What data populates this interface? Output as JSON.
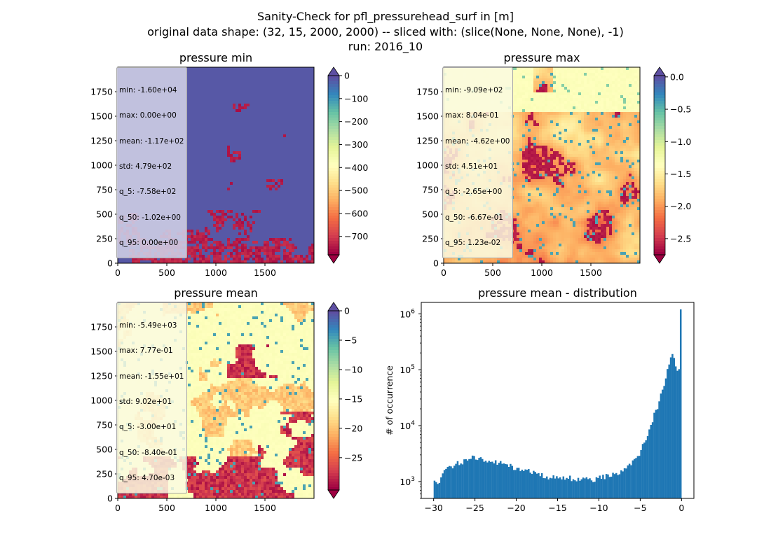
{
  "suptitle": {
    "line1": "Sanity-Check for pfl_pressurehead_surf in [m]",
    "line2": "original data shape: (32, 15, 2000, 2000) -- sliced with: (slice(None, None, None), -1)",
    "line3": "run: 2016_10"
  },
  "colors": {
    "spectral": [
      "#9e0142",
      "#d53e4f",
      "#f46d43",
      "#fdae61",
      "#fee08b",
      "#ffffbf",
      "#e6f598",
      "#abdda4",
      "#66c2a5",
      "#3288bd",
      "#5e4fa2"
    ],
    "hist_bar": "#1f77b4"
  },
  "chart_data": [
    {
      "type": "heatmap",
      "title": "pressure min",
      "xlim": [
        0,
        2000
      ],
      "ylim": [
        0,
        2000
      ],
      "x_ticks": [
        "0",
        "500",
        "1000",
        "1500"
      ],
      "y_ticks": [
        "0",
        "250",
        "500",
        "750",
        "1000",
        "1250",
        "1500",
        "1750"
      ],
      "colorbar": {
        "range": [
          -780,
          0
        ],
        "extend": "both",
        "ticks": [
          "0",
          "−100",
          "−200",
          "−300",
          "−400",
          "−500",
          "−600",
          "−700"
        ],
        "tick_values": [
          0,
          -100,
          -200,
          -300,
          -400,
          -500,
          -600,
          -700
        ]
      },
      "colormap": "Spectral",
      "stats": [
        "min: -1.60e+04",
        "max: 0.00e+00",
        "mean: -1.17e+02",
        "std: 4.79e+02",
        "q_5: -7.58e+02",
        "q_50: -1.02e+00",
        "q_95: 0.00e+00"
      ]
    },
    {
      "type": "heatmap",
      "title": "pressure max",
      "xlim": [
        0,
        2000
      ],
      "ylim": [
        0,
        2000
      ],
      "x_ticks": [
        "0",
        "500",
        "1000",
        "1500"
      ],
      "y_ticks": [
        "0",
        "250",
        "500",
        "750",
        "1000",
        "1250",
        "1500",
        "1750"
      ],
      "colorbar": {
        "range": [
          -2.75,
          0.02
        ],
        "extend": "both",
        "ticks": [
          "0.0",
          "−0.5",
          "−1.0",
          "−1.5",
          "−2.0",
          "−2.5"
        ],
        "tick_values": [
          0,
          -0.5,
          -1.0,
          -1.5,
          -2.0,
          -2.5
        ]
      },
      "colormap": "Spectral",
      "stats": [
        "min: -9.09e+02",
        "max: 8.04e-01",
        "mean: -4.62e+00",
        "std: 4.51e+01",
        "q_5: -2.65e+00",
        "q_50: -6.67e-01",
        "q_95: 1.23e-02"
      ]
    },
    {
      "type": "heatmap",
      "title": "pressure mean",
      "xlim": [
        0,
        2000
      ],
      "ylim": [
        0,
        2000
      ],
      "x_ticks": [
        "0",
        "500",
        "1000",
        "1500"
      ],
      "y_ticks": [
        "0",
        "250",
        "500",
        "750",
        "1000",
        "1250",
        "1500",
        "1750"
      ],
      "colorbar": {
        "range": [
          -30.5,
          0
        ],
        "extend": "both",
        "ticks": [
          "0",
          "−5",
          "−10",
          "−15",
          "−20",
          "−25"
        ],
        "tick_values": [
          0,
          -5,
          -10,
          -15,
          -20,
          -25
        ]
      },
      "colormap": "Spectral",
      "stats": [
        "min: -5.49e+03",
        "max: 7.77e-01",
        "mean: -1.55e+01",
        "std: 9.02e+01",
        "q_5: -3.00e+01",
        "q_50: -8.40e-01",
        "q_95: 4.70e-03"
      ]
    },
    {
      "type": "bar",
      "title": "pressure mean - distribution",
      "ylabel": "# of occurrence",
      "yscale": "log",
      "xlim": [
        -31.5,
        1.5
      ],
      "x_ticks": [
        "−30",
        "−25",
        "−20",
        "−15",
        "−10",
        "−5",
        "0"
      ],
      "x_tick_values": [
        -30,
        -25,
        -20,
        -15,
        -10,
        -5,
        0
      ],
      "y_ticks": [
        "10",
        "10",
        "10",
        "10"
      ],
      "y_tick_exponents": [
        "3",
        "4",
        "5",
        "6"
      ],
      "y_tick_values": [
        1000,
        10000,
        100000,
        1000000
      ],
      "ylim": [
        500,
        1600000
      ],
      "bin_range": [
        -30,
        0
      ],
      "bins": 150,
      "envelope": [
        {
          "x": -30.0,
          "y": 1300
        },
        {
          "x": -29.6,
          "y": 850
        },
        {
          "x": -29.2,
          "y": 1150
        },
        {
          "x": -28.5,
          "y": 1650
        },
        {
          "x": -27.5,
          "y": 2000
        },
        {
          "x": -26.0,
          "y": 2350
        },
        {
          "x": -25.0,
          "y": 2800
        },
        {
          "x": -24.0,
          "y": 2350
        },
        {
          "x": -22.5,
          "y": 2250
        },
        {
          "x": -21.0,
          "y": 1900
        },
        {
          "x": -19.5,
          "y": 1650
        },
        {
          "x": -18.0,
          "y": 1500
        },
        {
          "x": -16.5,
          "y": 1250
        },
        {
          "x": -15.0,
          "y": 1180
        },
        {
          "x": -13.5,
          "y": 1150
        },
        {
          "x": -12.0,
          "y": 1140
        },
        {
          "x": -10.5,
          "y": 1100
        },
        {
          "x": -9.0,
          "y": 1250
        },
        {
          "x": -7.5,
          "y": 1450
        },
        {
          "x": -6.5,
          "y": 1750
        },
        {
          "x": -5.5,
          "y": 2500
        },
        {
          "x": -4.8,
          "y": 4000
        },
        {
          "x": -4.0,
          "y": 8000
        },
        {
          "x": -3.0,
          "y": 20000
        },
        {
          "x": -2.0,
          "y": 60000
        },
        {
          "x": -1.4,
          "y": 150000
        },
        {
          "x": -1.0,
          "y": 185000
        },
        {
          "x": -0.6,
          "y": 100000
        },
        {
          "x": -0.2,
          "y": 90000
        },
        {
          "x": 0.0,
          "y": 1200000
        }
      ]
    }
  ]
}
